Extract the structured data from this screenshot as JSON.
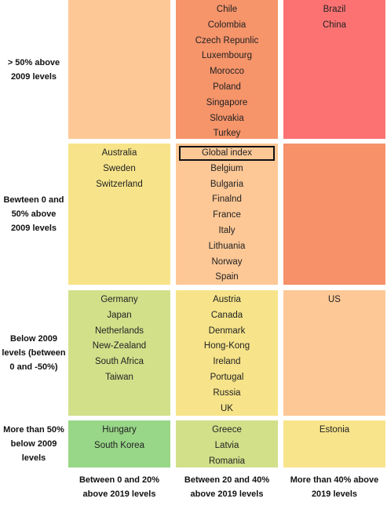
{
  "row_labels": [
    "> 50% above 2009 levels",
    "Bewteen 0 and 50% above 2009 levels",
    "Below 2009 levels (between 0 and -50%)",
    "More than 50% below 2009 levels"
  ],
  "column_labels": [
    "Between 0 and 20% above 2019 levels",
    "Between 20 and 40% above 2019 levels",
    "More than 40% above 2019 levels"
  ],
  "cells": [
    [
      [],
      [
        "Chile",
        "Colombia",
        "Czech Repunlic",
        "Luxembourg",
        "Morocco",
        "Poland",
        "Singapore",
        "Slovakia",
        "Turkey"
      ],
      [
        "Brazil",
        "China"
      ]
    ],
    [
      [
        "Australia",
        "Sweden",
        "Switzerland"
      ],
      [
        "Global index",
        "Belgium",
        "Bulgaria",
        "Finalnd",
        "France",
        "Italy",
        "Lithuania",
        "Norway",
        "Spain"
      ],
      []
    ],
    [
      [
        "Germany",
        "Japan",
        "Netherlands",
        "New-Zealand",
        "South Africa",
        "Taiwan"
      ],
      [
        "Austria",
        "Canada",
        "Denmark",
        "Hong-Kong",
        "Ireland",
        "Portugal",
        "Russia",
        "UK"
      ],
      [
        "US"
      ]
    ],
    [
      [
        "Hungary",
        "South Korea"
      ],
      [
        "Greece",
        "Latvia",
        "Romania"
      ],
      [
        "Estonia"
      ]
    ]
  ]
}
